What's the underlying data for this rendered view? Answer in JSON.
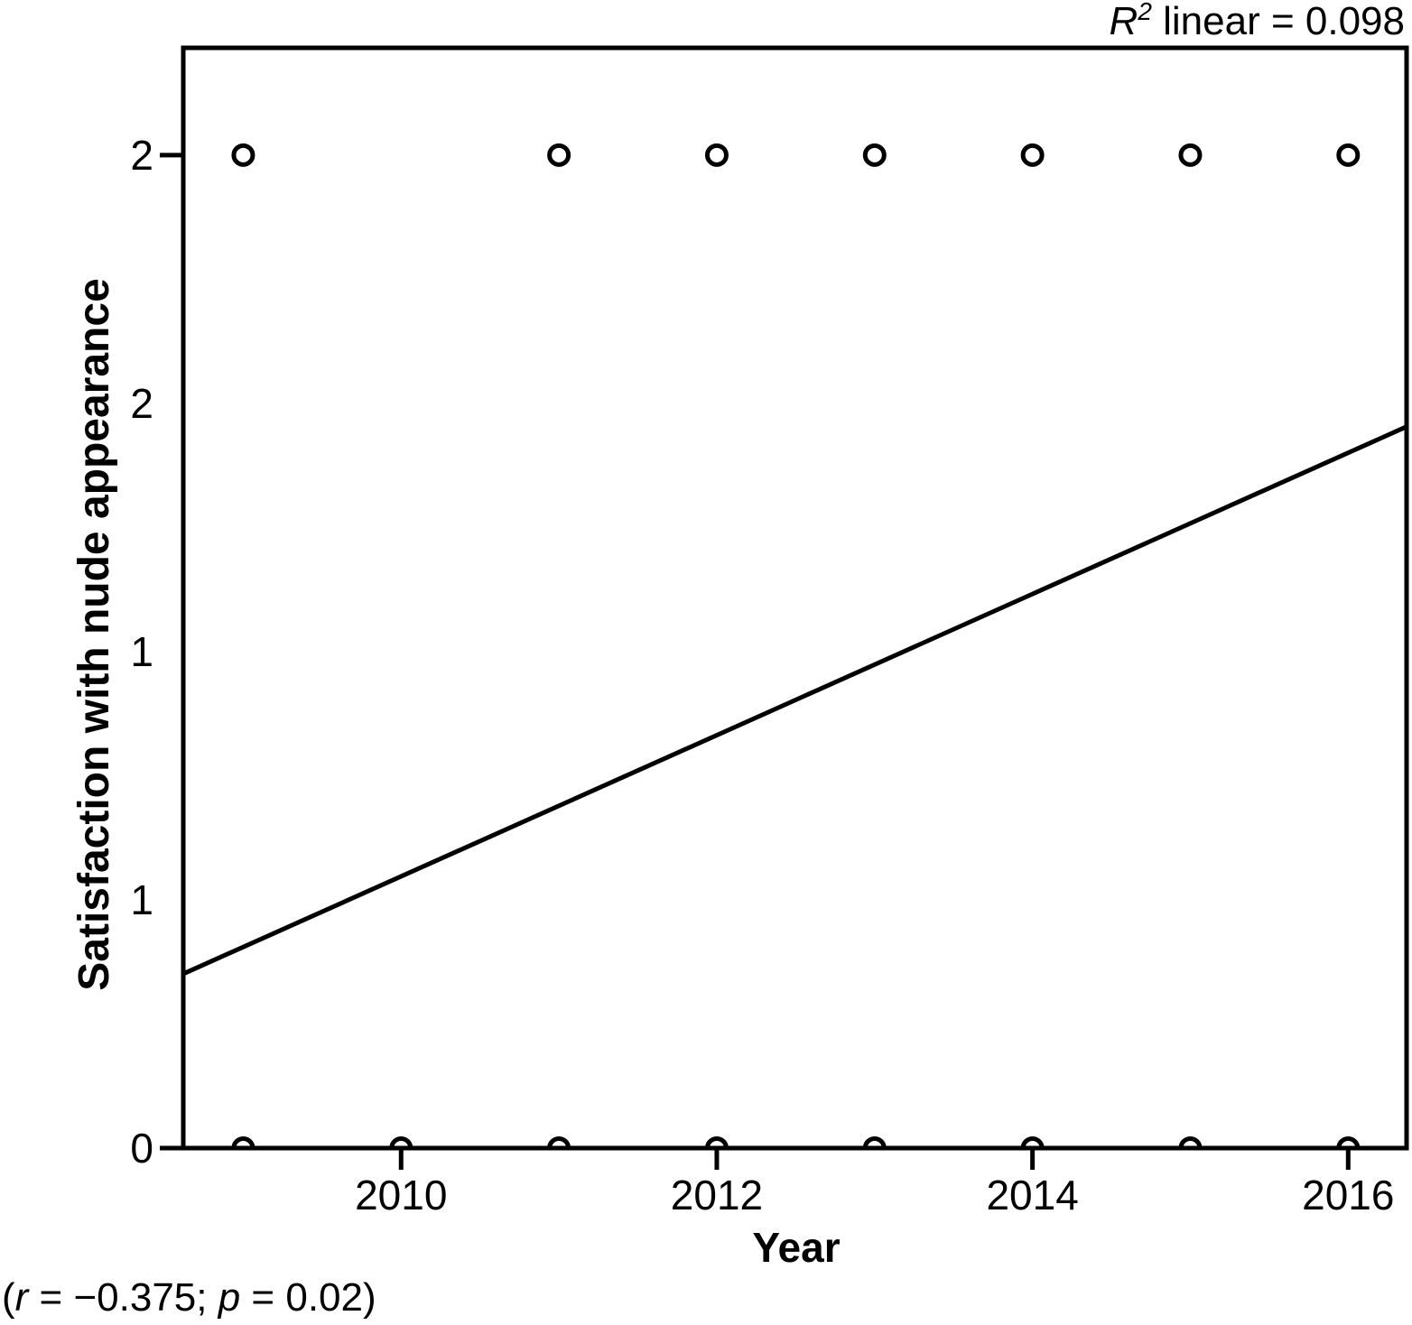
{
  "figure": {
    "r2_annotation": {
      "r_symbol": "R",
      "exponent": "2",
      "rest": " linear = 0.098"
    },
    "footnote": {
      "open": "(",
      "r_symbol": "r",
      "r_rest": " = −0.375; ",
      "p_symbol": "p",
      "p_rest": " = 0.02)"
    },
    "xlabel": "Year",
    "ylabel": "Satisfaction with nude appearance"
  },
  "chart_data": {
    "type": "scatter",
    "title": "",
    "xlabel": "Year",
    "ylabel": "Satisfaction with nude appearance",
    "annotation": "R² linear = 0.098",
    "footnote": "(r = −0.375; p = 0.02)",
    "xlim": [
      2008.62,
      2016.37
    ],
    "ylim": [
      0,
      2.216
    ],
    "grid": false,
    "legend": false,
    "x_ticks": [
      {
        "value": 2010,
        "label": "2010",
        "mark": true
      },
      {
        "value": 2012,
        "label": "2012",
        "mark": true
      },
      {
        "value": 2014,
        "label": "2014",
        "mark": true
      },
      {
        "value": 2016,
        "label": "2016",
        "mark": true
      }
    ],
    "y_ticks": [
      {
        "value": 2.0,
        "label": "2",
        "mark": true
      },
      {
        "value": 1.5,
        "label": "2",
        "mark": false
      },
      {
        "value": 1.0,
        "label": "1",
        "mark": false
      },
      {
        "value": 0.5,
        "label": "1",
        "mark": false
      },
      {
        "value": 0.0,
        "label": "0",
        "mark": true
      }
    ],
    "series": [
      {
        "name": "observations_y2",
        "x": [
          2009,
          2011,
          2012,
          2013,
          2014,
          2015,
          2016
        ],
        "y": [
          2,
          2,
          2,
          2,
          2,
          2,
          2
        ]
      },
      {
        "name": "observations_y0",
        "x": [
          2009,
          2010,
          2011,
          2012,
          2013,
          2014,
          2015,
          2016
        ],
        "y": [
          0,
          0,
          0,
          0,
          0,
          0,
          0,
          0
        ]
      }
    ],
    "fit_line": {
      "x": [
        2008.62,
        2016.37
      ],
      "y": [
        0.351,
        1.453
      ]
    },
    "marker": {
      "shape": "circle",
      "radius_px": 10.5,
      "stroke_px": 5,
      "color": "#000000",
      "fill": "none"
    },
    "colors": {
      "foreground": "#000000",
      "background": "#ffffff"
    }
  }
}
